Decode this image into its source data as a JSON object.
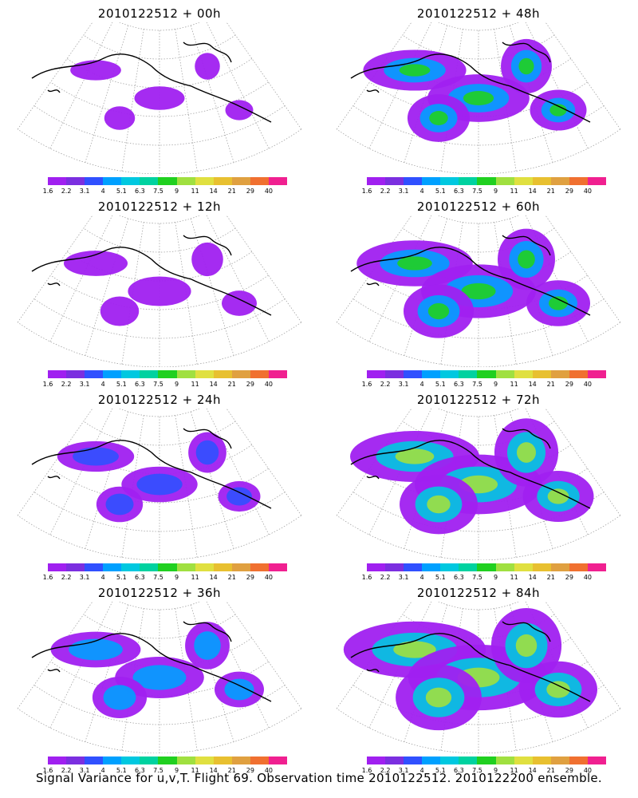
{
  "panels": [
    {
      "title": "2010122512 + 00h",
      "level": 0
    },
    {
      "title": "2010122512 + 48h",
      "level": 4
    },
    {
      "title": "2010122512 + 12h",
      "level": 1
    },
    {
      "title": "2010122512 + 60h",
      "level": 5
    },
    {
      "title": "2010122512 + 24h",
      "level": 2
    },
    {
      "title": "2010122512 + 72h",
      "level": 6
    },
    {
      "title": "2010122512 + 36h",
      "level": 3
    },
    {
      "title": "2010122512 + 84h",
      "level": 7
    }
  ],
  "colorbar": {
    "labels": [
      "1.6",
      "2.2",
      "3.1",
      "4",
      "5.1",
      "6.3",
      "7.5",
      "9",
      "11",
      "14",
      "21",
      "29",
      "40"
    ],
    "colors": [
      "#a020f0",
      "#7b2fe0",
      "#3050ff",
      "#00a0ff",
      "#00c8e0",
      "#00d2a0",
      "#20d020",
      "#a0e040",
      "#e0e040",
      "#e8c030",
      "#e0a040",
      "#f07030",
      "#f02090"
    ]
  },
  "footer": "Signal Variance for u,v,T. Flight 69. Observation time 2010122512. 2010122200 ensemble."
}
